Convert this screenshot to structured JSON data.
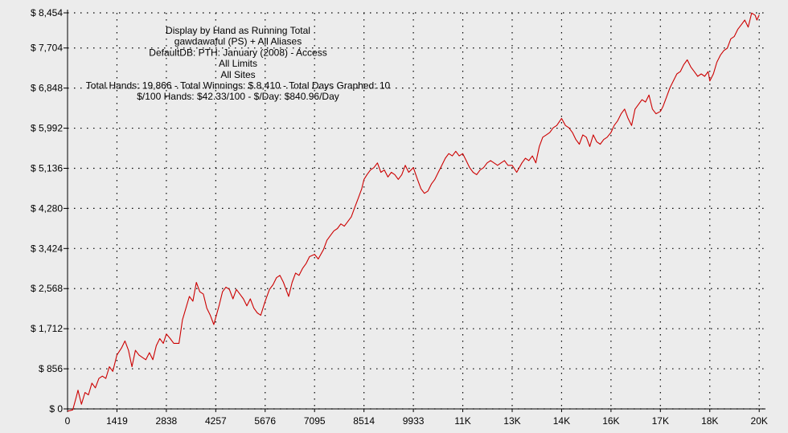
{
  "chart_data": {
    "type": "line",
    "title_lines": [
      "Display by Hand as Running Total",
      "gawdawaful (PS) + All Aliases",
      "DefaultDB: PTH: January (2008) - Access",
      "All Limits",
      "All Sites",
      "Total Hands: 19,866 - Total Winnings: $ 8,410 - Total Days Graphed: 10",
      "$/100 Hands: $42.33/100 - $/Day: $840.96/Day"
    ],
    "xlabel": "",
    "ylabel": "",
    "xlim": [
      0,
      20000
    ],
    "ylim": [
      0,
      8454
    ],
    "grid": true,
    "y_ticks": [
      {
        "value": 0,
        "label": "$ 0"
      },
      {
        "value": 856,
        "label": "$ 856"
      },
      {
        "value": 1712,
        "label": "$ 1,712"
      },
      {
        "value": 2568,
        "label": "$ 2,568"
      },
      {
        "value": 3424,
        "label": "$ 3,424"
      },
      {
        "value": 4280,
        "label": "$ 4,280"
      },
      {
        "value": 5136,
        "label": "$ 5,136"
      },
      {
        "value": 5992,
        "label": "$ 5,992"
      },
      {
        "value": 6848,
        "label": "$ 6,848"
      },
      {
        "value": 7704,
        "label": "$ 7,704"
      },
      {
        "value": 8454,
        "label": "$ 8,454"
      }
    ],
    "x_ticks": [
      {
        "value": 0,
        "label": "0"
      },
      {
        "value": 1419,
        "label": "1419"
      },
      {
        "value": 2838,
        "label": "2838"
      },
      {
        "value": 4257,
        "label": "4257"
      },
      {
        "value": 5676,
        "label": "5676"
      },
      {
        "value": 7095,
        "label": "7095"
      },
      {
        "value": 8514,
        "label": "8514"
      },
      {
        "value": 9933,
        "label": "9933"
      },
      {
        "value": 11352,
        "label": "11K"
      },
      {
        "value": 12771,
        "label": "13K"
      },
      {
        "value": 14190,
        "label": "14K"
      },
      {
        "value": 15609,
        "label": "16K"
      },
      {
        "value": 17028,
        "label": "17K"
      },
      {
        "value": 18447,
        "label": "18K"
      },
      {
        "value": 19866,
        "label": "20K"
      }
    ],
    "series": [
      {
        "color": "#cc0000",
        "points": [
          [
            0,
            -50
          ],
          [
            150,
            -20
          ],
          [
            250,
            250
          ],
          [
            300,
            400
          ],
          [
            400,
            100
          ],
          [
            500,
            350
          ],
          [
            600,
            300
          ],
          [
            700,
            550
          ],
          [
            800,
            450
          ],
          [
            900,
            650
          ],
          [
            1000,
            700
          ],
          [
            1100,
            650
          ],
          [
            1200,
            900
          ],
          [
            1300,
            800
          ],
          [
            1419,
            1150
          ],
          [
            1550,
            1300
          ],
          [
            1650,
            1450
          ],
          [
            1750,
            1250
          ],
          [
            1850,
            900
          ],
          [
            1950,
            1250
          ],
          [
            2050,
            1150
          ],
          [
            2150,
            1100
          ],
          [
            2250,
            1050
          ],
          [
            2350,
            1200
          ],
          [
            2450,
            1050
          ],
          [
            2550,
            1350
          ],
          [
            2650,
            1500
          ],
          [
            2750,
            1400
          ],
          [
            2838,
            1600
          ],
          [
            2950,
            1500
          ],
          [
            3050,
            1400
          ],
          [
            3200,
            1400
          ],
          [
            3300,
            1900
          ],
          [
            3400,
            2150
          ],
          [
            3500,
            2400
          ],
          [
            3600,
            2300
          ],
          [
            3700,
            2700
          ],
          [
            3800,
            2500
          ],
          [
            3900,
            2450
          ],
          [
            4000,
            2150
          ],
          [
            4100,
            2000
          ],
          [
            4200,
            1800
          ],
          [
            4257,
            1950
          ],
          [
            4350,
            2200
          ],
          [
            4450,
            2500
          ],
          [
            4550,
            2600
          ],
          [
            4650,
            2550
          ],
          [
            4750,
            2350
          ],
          [
            4850,
            2550
          ],
          [
            4950,
            2450
          ],
          [
            5050,
            2350
          ],
          [
            5150,
            2200
          ],
          [
            5250,
            2350
          ],
          [
            5350,
            2150
          ],
          [
            5450,
            2050
          ],
          [
            5550,
            2000
          ],
          [
            5676,
            2300
          ],
          [
            5800,
            2550
          ],
          [
            5900,
            2650
          ],
          [
            6000,
            2800
          ],
          [
            6100,
            2850
          ],
          [
            6200,
            2700
          ],
          [
            6300,
            2500
          ],
          [
            6350,
            2400
          ],
          [
            6450,
            2700
          ],
          [
            6550,
            2900
          ],
          [
            6650,
            2850
          ],
          [
            6750,
            3000
          ],
          [
            6850,
            3100
          ],
          [
            6950,
            3250
          ],
          [
            7095,
            3300
          ],
          [
            7200,
            3200
          ],
          [
            7350,
            3400
          ],
          [
            7450,
            3600
          ],
          [
            7550,
            3700
          ],
          [
            7650,
            3800
          ],
          [
            7750,
            3850
          ],
          [
            7850,
            3950
          ],
          [
            7950,
            3900
          ],
          [
            8050,
            4000
          ],
          [
            8150,
            4100
          ],
          [
            8250,
            4300
          ],
          [
            8350,
            4500
          ],
          [
            8450,
            4700
          ],
          [
            8514,
            4900
          ],
          [
            8600,
            5000
          ],
          [
            8700,
            5100
          ],
          [
            8800,
            5150
          ],
          [
            8900,
            5250
          ],
          [
            9000,
            5050
          ],
          [
            9100,
            5100
          ],
          [
            9200,
            4950
          ],
          [
            9300,
            5050
          ],
          [
            9400,
            5000
          ],
          [
            9500,
            4900
          ],
          [
            9600,
            5000
          ],
          [
            9700,
            5200
          ],
          [
            9800,
            5050
          ],
          [
            9933,
            5150
          ],
          [
            10050,
            4900
          ],
          [
            10150,
            4700
          ],
          [
            10250,
            4600
          ],
          [
            10350,
            4650
          ],
          [
            10450,
            4800
          ],
          [
            10550,
            4900
          ],
          [
            10650,
            5050
          ],
          [
            10750,
            5200
          ],
          [
            10850,
            5350
          ],
          [
            10950,
            5450
          ],
          [
            11050,
            5400
          ],
          [
            11150,
            5500
          ],
          [
            11250,
            5400
          ],
          [
            11352,
            5450
          ],
          [
            11450,
            5300
          ],
          [
            11550,
            5150
          ],
          [
            11650,
            5050
          ],
          [
            11750,
            5000
          ],
          [
            11850,
            5100
          ],
          [
            11950,
            5150
          ],
          [
            12050,
            5250
          ],
          [
            12150,
            5300
          ],
          [
            12250,
            5250
          ],
          [
            12350,
            5200
          ],
          [
            12450,
            5250
          ],
          [
            12550,
            5300
          ],
          [
            12650,
            5200
          ],
          [
            12771,
            5200
          ],
          [
            12900,
            5050
          ],
          [
            13050,
            5250
          ],
          [
            13150,
            5350
          ],
          [
            13250,
            5300
          ],
          [
            13350,
            5400
          ],
          [
            13450,
            5250
          ],
          [
            13550,
            5600
          ],
          [
            13650,
            5800
          ],
          [
            13750,
            5850
          ],
          [
            13850,
            5900
          ],
          [
            13950,
            6000
          ],
          [
            14050,
            6050
          ],
          [
            14190,
            6200
          ],
          [
            14300,
            6050
          ],
          [
            14400,
            6000
          ],
          [
            14500,
            5900
          ],
          [
            14600,
            5750
          ],
          [
            14700,
            5650
          ],
          [
            14800,
            5850
          ],
          [
            14900,
            5800
          ],
          [
            15000,
            5600
          ],
          [
            15100,
            5850
          ],
          [
            15200,
            5700
          ],
          [
            15300,
            5650
          ],
          [
            15400,
            5750
          ],
          [
            15500,
            5800
          ],
          [
            15609,
            5900
          ],
          [
            15700,
            6050
          ],
          [
            15800,
            6150
          ],
          [
            15900,
            6300
          ],
          [
            16000,
            6400
          ],
          [
            16100,
            6200
          ],
          [
            16200,
            6050
          ],
          [
            16300,
            6400
          ],
          [
            16400,
            6500
          ],
          [
            16500,
            6600
          ],
          [
            16600,
            6550
          ],
          [
            16700,
            6700
          ],
          [
            16800,
            6400
          ],
          [
            16900,
            6300
          ],
          [
            17028,
            6350
          ],
          [
            17100,
            6450
          ],
          [
            17200,
            6650
          ],
          [
            17300,
            6850
          ],
          [
            17400,
            7000
          ],
          [
            17500,
            7150
          ],
          [
            17600,
            7200
          ],
          [
            17700,
            7350
          ],
          [
            17800,
            7450
          ],
          [
            17900,
            7300
          ],
          [
            18000,
            7200
          ],
          [
            18100,
            7100
          ],
          [
            18200,
            7150
          ],
          [
            18300,
            7100
          ],
          [
            18400,
            7200
          ],
          [
            18447,
            7000
          ],
          [
            18550,
            7150
          ],
          [
            18650,
            7400
          ],
          [
            18750,
            7550
          ],
          [
            18850,
            7650
          ],
          [
            18950,
            7700
          ],
          [
            19050,
            7900
          ],
          [
            19150,
            7950
          ],
          [
            19250,
            8100
          ],
          [
            19350,
            8200
          ],
          [
            19450,
            8300
          ],
          [
            19550,
            8150
          ],
          [
            19650,
            8450
          ],
          [
            19750,
            8400
          ],
          [
            19800,
            8300
          ],
          [
            19866,
            8410
          ]
        ]
      }
    ]
  }
}
